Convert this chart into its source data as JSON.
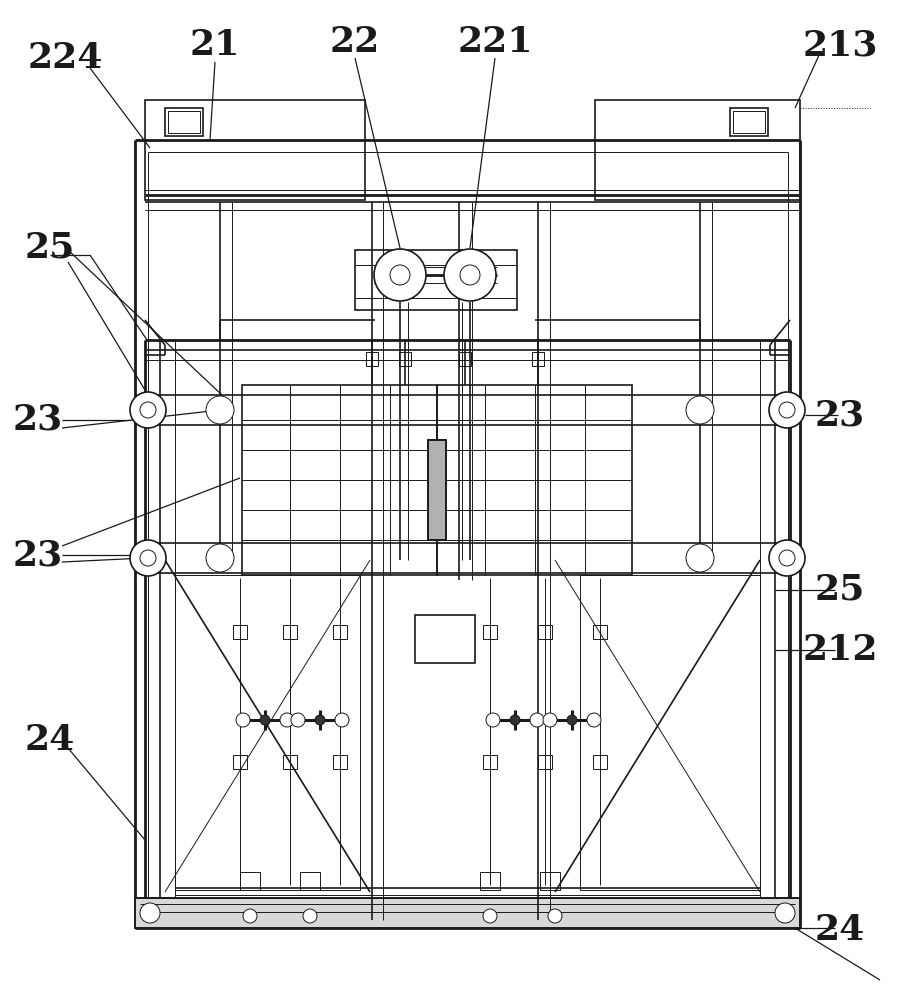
{
  "bg_color": "#ffffff",
  "line_color": "#1a1a1a",
  "fig_width": 9.19,
  "fig_height": 10.0,
  "font_size": 26,
  "lw_heavy": 2.0,
  "lw_med": 1.2,
  "lw_thin": 0.7,
  "lw_label": 0.9
}
